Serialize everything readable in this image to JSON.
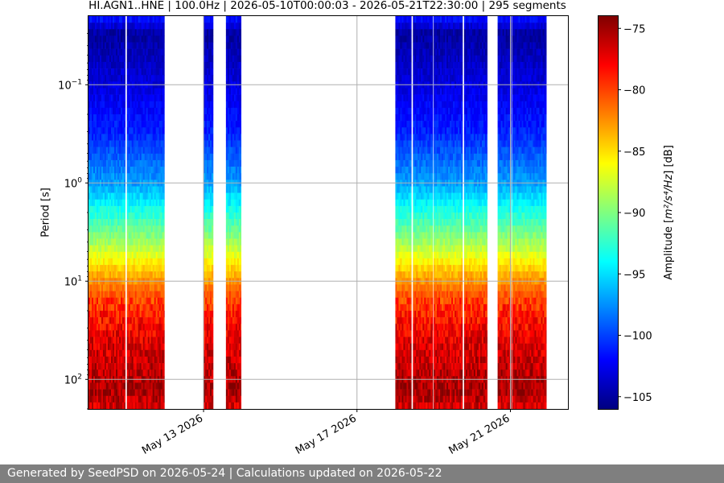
{
  "chart_data": {
    "type": "heatmap",
    "title": "HI.AGN1..HNE | 100.0Hz | 2026-05-10T00:00:03 - 2026-05-21T22:30:00 | 295 segments",
    "xlabel": "",
    "ylabel": "Period [s]",
    "x_scale": "date",
    "y_scale": "log",
    "y_inverted": true,
    "xlim": [
      "2026-05-10T00:00:03",
      "2026-05-22T12:00:00"
    ],
    "ylim": [
      0.02,
      200
    ],
    "x_ticks": [
      "2026-05-13",
      "2026-05-17",
      "2026-05-21"
    ],
    "x_tick_labels": [
      "May 13 2026",
      "May 17 2026",
      "May 21 2026"
    ],
    "y_tick_labels": [
      {
        "value": 0.1,
        "mantissa": "10",
        "exp": "−1"
      },
      {
        "value": 1,
        "mantissa": "10",
        "exp": "0"
      },
      {
        "value": 10,
        "mantissa": "10",
        "exp": "1"
      },
      {
        "value": 100,
        "mantissa": "10",
        "exp": "2"
      }
    ],
    "grid": true,
    "colormap": "jet",
    "colorbar": {
      "label_prefix": "Amplitude [",
      "label_math": "m²/s⁴/Hz",
      "label_suffix": "] [dB]",
      "range": [
        -106,
        -74
      ],
      "ticks": [
        -75,
        -80,
        -85,
        -90,
        -95,
        -100,
        -105
      ]
    },
    "data_segments": [
      {
        "start": "2026-05-10T00:00:03",
        "end": "2026-05-10T23:00:00"
      },
      {
        "start": "2026-05-11T00:00:00",
        "end": "2026-05-11T23:30:00"
      },
      {
        "start": "2026-05-13T00:00:00",
        "end": "2026-05-13T06:00:00"
      },
      {
        "start": "2026-05-13T14:00:00",
        "end": "2026-05-13T23:30:00"
      },
      {
        "start": "2026-05-18T00:00:00",
        "end": "2026-05-18T10:00:00"
      },
      {
        "start": "2026-05-18T11:00:00",
        "end": "2026-05-18T23:30:00"
      },
      {
        "start": "2026-05-19T00:00:00",
        "end": "2026-05-19T18:00:00"
      },
      {
        "start": "2026-05-19T19:00:00",
        "end": "2026-05-20T09:30:00"
      },
      {
        "start": "2026-05-20T16:00:00",
        "end": "2026-05-21T00:30:00"
      },
      {
        "start": "2026-05-21T01:00:00",
        "end": "2026-05-21T22:30:00"
      }
    ],
    "psd_profile": [
      {
        "period": 0.02,
        "db": -101
      },
      {
        "period": 0.03,
        "db": -105
      },
      {
        "period": 0.1,
        "db": -103
      },
      {
        "period": 0.3,
        "db": -101
      },
      {
        "period": 1,
        "db": -97
      },
      {
        "period": 2,
        "db": -93
      },
      {
        "period": 4,
        "db": -89
      },
      {
        "period": 8,
        "db": -84
      },
      {
        "period": 15,
        "db": -80
      },
      {
        "period": 40,
        "db": -77
      },
      {
        "period": 80,
        "db": -76
      },
      {
        "period": 130,
        "db": -75
      },
      {
        "period": 200,
        "db": -77
      }
    ]
  },
  "footer": {
    "text": "Generated by SeedPSD on 2026-05-24 | Calculations updated on 2026-05-22"
  }
}
